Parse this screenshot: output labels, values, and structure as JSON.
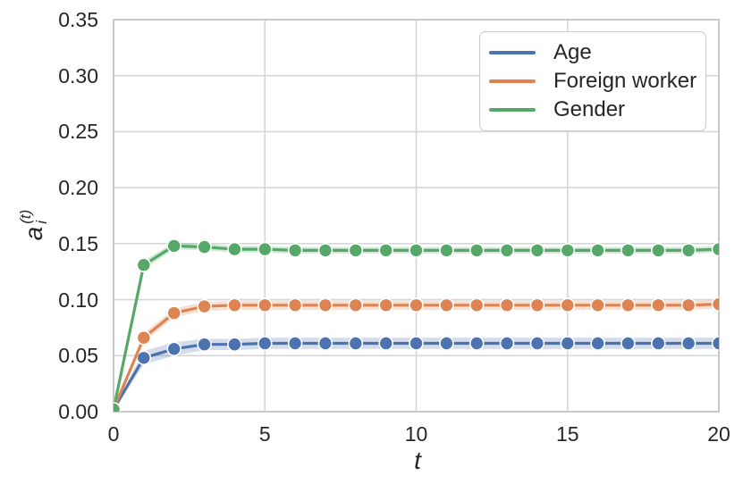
{
  "chart_data": {
    "type": "line",
    "title": "",
    "xlabel": "t",
    "ylabel": "a_i^(t)",
    "ylabel_parts": {
      "base": "a",
      "subscript": "i",
      "superscript": "(t)"
    },
    "xlim": [
      0,
      20
    ],
    "ylim": [
      0,
      0.35
    ],
    "xticks": [
      "0",
      "5",
      "10",
      "15",
      "20"
    ],
    "yticks": [
      "0.00",
      "0.05",
      "0.10",
      "0.15",
      "0.20",
      "0.25",
      "0.30",
      "0.35"
    ],
    "grid": true,
    "legend_position": "upper right",
    "grid_color": "#d6d6d6",
    "spine_color": "#c9c9c9",
    "text_color": "#262626",
    "band_alpha": 0.25,
    "x": [
      0,
      1,
      2,
      3,
      4,
      5,
      6,
      7,
      8,
      9,
      10,
      11,
      12,
      13,
      14,
      15,
      16,
      17,
      18,
      19,
      20
    ],
    "series": [
      {
        "name": "Age",
        "color": "#4C72B0",
        "values": [
          0.002,
          0.048,
          0.056,
          0.06,
          0.06,
          0.061,
          0.061,
          0.061,
          0.061,
          0.061,
          0.061,
          0.061,
          0.061,
          0.061,
          0.061,
          0.061,
          0.061,
          0.061,
          0.061,
          0.061,
          0.061
        ],
        "band_halfwidth": [
          0.001,
          0.006,
          0.006,
          0.005,
          0.005,
          0.005,
          0.005,
          0.005,
          0.005,
          0.005,
          0.005,
          0.005,
          0.005,
          0.005,
          0.005,
          0.005,
          0.005,
          0.005,
          0.005,
          0.005,
          0.005
        ]
      },
      {
        "name": "Foreign worker",
        "color": "#DD8452",
        "values": [
          0.002,
          0.066,
          0.088,
          0.094,
          0.095,
          0.095,
          0.095,
          0.095,
          0.095,
          0.095,
          0.095,
          0.095,
          0.095,
          0.095,
          0.095,
          0.095,
          0.095,
          0.095,
          0.095,
          0.095,
          0.096
        ],
        "band_halfwidth": [
          0.001,
          0.004,
          0.004,
          0.004,
          0.004,
          0.004,
          0.004,
          0.004,
          0.004,
          0.004,
          0.004,
          0.004,
          0.004,
          0.004,
          0.004,
          0.004,
          0.004,
          0.004,
          0.004,
          0.004,
          0.004
        ]
      },
      {
        "name": "Gender",
        "color": "#55A868",
        "values": [
          0.002,
          0.131,
          0.148,
          0.147,
          0.145,
          0.145,
          0.144,
          0.144,
          0.144,
          0.144,
          0.144,
          0.144,
          0.144,
          0.144,
          0.144,
          0.144,
          0.144,
          0.144,
          0.144,
          0.144,
          0.145
        ],
        "band_halfwidth": [
          0.001,
          0.004,
          0.003,
          0.003,
          0.003,
          0.003,
          0.003,
          0.003,
          0.003,
          0.003,
          0.003,
          0.003,
          0.003,
          0.003,
          0.003,
          0.003,
          0.003,
          0.003,
          0.003,
          0.003,
          0.003
        ]
      }
    ]
  }
}
